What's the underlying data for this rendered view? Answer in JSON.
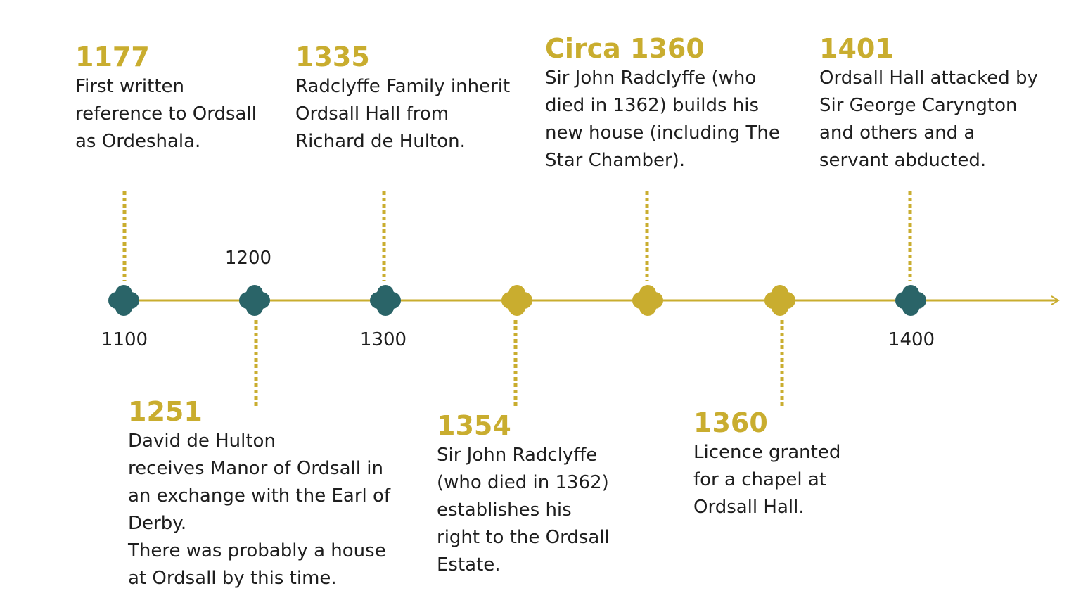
{
  "colors": {
    "gold": "#c9ad2f",
    "teal": "#2a6468",
    "text": "#1e1e1e"
  },
  "axis_ticks": [
    "1100",
    "1200",
    "1300",
    "1400"
  ],
  "markers": [
    "teal",
    "teal",
    "teal",
    "gold",
    "gold",
    "gold",
    "teal"
  ],
  "events": [
    {
      "year": "1177",
      "text": "First written\nreference to Ordsall\nas Ordeshala."
    },
    {
      "year": "1251",
      "text": "David de Hulton\nreceives Manor of Ordsall in\nan exchange with the Earl of\nDerby.\nThere was probably a house\nat Ordsall by this time."
    },
    {
      "year": "1335",
      "text": "Radclyffe Family inherit\nOrdsall Hall from\nRichard de Hulton."
    },
    {
      "year": "1354",
      "text": "Sir John Radclyffe\n(who died in 1362)\nestablishes his\nright to the Ordsall\nEstate."
    },
    {
      "year": "Circa 1360",
      "text": "Sir John Radclyffe (who\ndied in 1362) builds his\nnew house (including The\nStar Chamber)."
    },
    {
      "year": "1360",
      "text": "Licence granted\nfor a chapel at\nOrdsall Hall."
    },
    {
      "year": "1401",
      "text": "Ordsall Hall attacked by\nSir George Caryngton\nand others and a\nservant abducted."
    }
  ]
}
